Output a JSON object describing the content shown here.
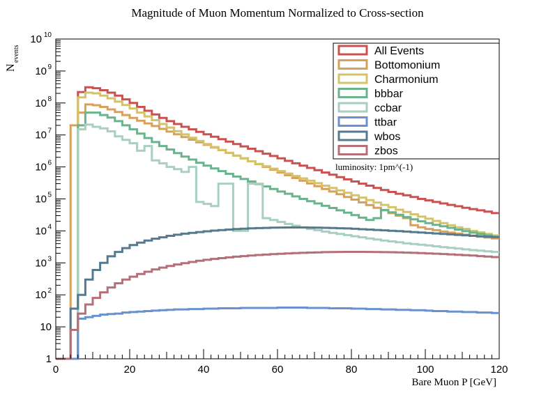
{
  "chart_data": {
    "type": "line",
    "style": "step-histogram",
    "title": "Magnitude of Muon Momentum Normalized to Cross-section",
    "xlabel": "Bare Muon P [GeV]",
    "ylabel_main": "N",
    "ylabel_sub": "events",
    "xlim": [
      0,
      120
    ],
    "ylim": [
      1,
      10000000000
    ],
    "yscale": "log",
    "bin_width": 2,
    "x_bin_starts": [
      0,
      2,
      4,
      6,
      8,
      10,
      12,
      14,
      16,
      18,
      20,
      22,
      24,
      26,
      28,
      30,
      32,
      34,
      36,
      38,
      40,
      42,
      44,
      46,
      48,
      50,
      52,
      54,
      56,
      58,
      60,
      62,
      64,
      66,
      68,
      70,
      72,
      74,
      76,
      78,
      80,
      82,
      84,
      86,
      88,
      90,
      92,
      94,
      96,
      98,
      100,
      102,
      104,
      106,
      108,
      110,
      112,
      114,
      116,
      118
    ],
    "x_ticks": [
      0,
      20,
      40,
      60,
      80,
      100,
      120
    ],
    "y_ticks": [
      {
        "value": 1,
        "label": "1",
        "sup": ""
      },
      {
        "value": 10,
        "label": "10",
        "sup": ""
      },
      {
        "value": 100,
        "label": "10",
        "sup": "2"
      },
      {
        "value": 1000,
        "label": "10",
        "sup": "3"
      },
      {
        "value": 10000,
        "label": "10",
        "sup": "4"
      },
      {
        "value": 100000,
        "label": "10",
        "sup": "5"
      },
      {
        "value": 1000000,
        "label": "10",
        "sup": "6"
      },
      {
        "value": 10000000,
        "label": "10",
        "sup": "7"
      },
      {
        "value": 100000000,
        "label": "10",
        "sup": "8"
      },
      {
        "value": 1000000000,
        "label": "10",
        "sup": "9"
      },
      {
        "value": 10000000000,
        "label": "10",
        "sup": "10"
      }
    ],
    "annotation": "luminosity: 1pm^(-1)",
    "legend_position": "top-right",
    "series": [
      {
        "name": "All Events",
        "color": "#c9514f",
        "values": [
          1,
          1,
          1,
          220000000.0,
          310000000.0,
          290000000.0,
          250000000.0,
          210000000.0,
          170000000.0,
          130000000.0,
          100000000.0,
          75000000.0,
          57000000.0,
          44000000.0,
          34000000.0,
          27000000.0,
          22000000.0,
          18000000.0,
          15000000.0,
          12500000.0,
          10500000.0,
          8800000.0,
          7400000.0,
          6200000.0,
          5200000.0,
          4400000.0,
          3700000.0,
          3100000.0,
          2600000.0,
          2200000.0,
          1850000.0,
          1550000.0,
          1300000.0,
          1100000.0,
          930000.0,
          790000.0,
          670000.0,
          570000.0,
          480000.0,
          410000.0,
          350000.0,
          300000.0,
          260000.0,
          220000.0,
          190000.0,
          165000.0,
          145000.0,
          130000.0,
          115000.0,
          100000.0,
          90000.0,
          80000.0,
          72000.0,
          65000.0,
          59000.0,
          53000.0,
          48000.0,
          44000.0,
          40000.0,
          36000.0
        ]
      },
      {
        "name": "Bottomonium",
        "color": "#d9a05b",
        "values": [
          1,
          1,
          20000000.0,
          50000000.0,
          90000000.0,
          85000000.0,
          75000000.0,
          63000000.0,
          52000000.0,
          42000000.0,
          34000000.0,
          28000000.0,
          23000000.0,
          19000000.0,
          15500000.0,
          12700000.0,
          10500000.0,
          8600000.0,
          7100000.0,
          5900000.0,
          4900000.0,
          4050000.0,
          3350000.0,
          2750000.0,
          2250000.0,
          1850000.0,
          1500000.0,
          1220000.0,
          1000000.0,
          820000.0,
          670000.0,
          550000.0,
          450000.0,
          370000.0,
          305000.0,
          250000.0,
          205000.0,
          170000.0,
          140000.0,
          115000.0,
          95000.0,
          78000.0,
          64000.0,
          53000.0,
          44000.0,
          36000.0,
          30000.0,
          25000.0,
          15000.0,
          13000.0,
          11500.0,
          10500.0,
          9500.0,
          8800.0,
          8200.0,
          7600.0,
          7100.0,
          6600.0,
          6200.0,
          5800.0
        ]
      },
      {
        "name": "Charmonium",
        "color": "#d4c36a",
        "values": [
          1,
          1,
          1,
          150000000.0,
          210000000.0,
          200000000.0,
          170000000.0,
          140000000.0,
          110000000.0,
          86000000.0,
          67000000.0,
          50000000.0,
          38000000.0,
          29000000.0,
          22000000.0,
          17000000.0,
          13200000.0,
          10400000.0,
          8200000.0,
          6500000.0,
          5200000.0,
          4200000.0,
          3400000.0,
          2750000.0,
          2250000.0,
          1850000.0,
          1500000.0,
          1250000.0,
          1050000.0,
          880000.0,
          740000.0,
          620000.0,
          520000.0,
          440000.0,
          370000.0,
          310000.0,
          260000.0,
          220000.0,
          185000.0,
          155000.0,
          130000.0,
          110000.0,
          92000.0,
          77000.0,
          65000.0,
          55000.0,
          46000.0,
          39000.0,
          33000.0,
          28000.0,
          24000.0,
          20500.0,
          17500.0,
          15000.0,
          13000.0,
          11500.0,
          10000.0,
          9000.0,
          8000.0,
          7200.0
        ]
      },
      {
        "name": "bbbar",
        "color": "#6bb38c",
        "values": [
          1,
          1,
          1,
          20000000.0,
          50000000.0,
          50000000.0,
          42000000.0,
          35000000.0,
          27000000.0,
          20000000.0,
          15000000.0,
          11000000.0,
          8000000.0,
          6000000.0,
          4500000.0,
          3500000.0,
          2700000.0,
          2100000.0,
          1700000.0,
          1350000.0,
          1100000.0,
          900000.0,
          740000.0,
          610000.0,
          500000.0,
          420000.0,
          350000.0,
          290000.0,
          245000.0,
          205000.0,
          170000.0,
          145000.0,
          120000.0,
          100000.0,
          85000.0,
          72000.0,
          61000.0,
          52000.0,
          44000.0,
          37000.0,
          31000.0,
          26000.0,
          22000.0,
          25000.0,
          45000.0,
          38000.0,
          32000.0,
          27000.0,
          23000.0,
          20000.0,
          17500.0,
          15500.0,
          14000.0,
          12500.0,
          11000.0,
          9800.0,
          8800.0,
          8000.0,
          7200.0,
          6600.0
        ]
      },
      {
        "name": "ccbar",
        "color": "#a8cfbf",
        "values": [
          1,
          1,
          1,
          15000000.0,
          21000000.0,
          18000000.0,
          16000000.0,
          13000000.0,
          9000000.0,
          7000000.0,
          5500000.0,
          3200000.0,
          4500000.0,
          1600000.0,
          1300000.0,
          1000000.0,
          850000.0,
          700000.0,
          1000000.0,
          80000.0,
          70000.0,
          60000.0,
          300000.0,
          300000.0,
          10000.0,
          10000.0,
          300000.0,
          300000.0,
          25000.0,
          22000.0,
          19000.0,
          16500.0,
          14500.0,
          13000.0,
          11500.0,
          10500.0,
          9500.0,
          8700.0,
          8000.0,
          7400.0,
          6800.0,
          6300.0,
          5800.0,
          5400.0,
          5000.0,
          4700.0,
          4400.0,
          4100.0,
          3900.0,
          3700.0,
          3500.0,
          3300.0,
          3100.0,
          2950.0,
          2800.0,
          2650.0,
          2500.0,
          2400.0,
          2300.0,
          2200.0
        ]
      },
      {
        "name": "ttbar",
        "color": "#6a91cf",
        "values": [
          1,
          1,
          1,
          18.0,
          20.0,
          22.0,
          24.0,
          25.0,
          26.0,
          28.0,
          29.0,
          30.0,
          31.0,
          32.0,
          33.0,
          34.0,
          35.0,
          35.0,
          36.0,
          36.0,
          37.0,
          37.0,
          38.0,
          38.0,
          38.0,
          39.0,
          39.0,
          39.0,
          39.0,
          39.0,
          40.0,
          40.0,
          40.0,
          40.0,
          39.0,
          39.0,
          39.0,
          38.0,
          38.0,
          38.0,
          37.0,
          37.0,
          36.0,
          36.0,
          35.0,
          35.0,
          34.0,
          34.0,
          33.0,
          33.0,
          32.0,
          31.0,
          31.0,
          30.0,
          30.0,
          29.0,
          29.0,
          28.0,
          28.0,
          27.0
        ]
      },
      {
        "name": "wbos",
        "color": "#55798f",
        "values": [
          1,
          1,
          37.0,
          100.0,
          300.0,
          600.0,
          1000.0,
          1600.0,
          2200.0,
          2900.0,
          3600.0,
          4300.0,
          5000.0,
          5700.0,
          6300.0,
          7000.0,
          7600.0,
          8200.0,
          8700.0,
          9200.0,
          9700.0,
          10200.0,
          10600.0,
          11000.0,
          11400.0,
          11700.0,
          12000.0,
          12200.0,
          12400.0,
          12600.0,
          12700.0,
          12800.0,
          12800.0,
          12800.0,
          12700.0,
          12600.0,
          12500.0,
          12300.0,
          12100.0,
          11900.0,
          11600.0,
          11300.0,
          11000.0,
          10700.0,
          10400.0,
          10100.0,
          9800.0,
          9500.0,
          9200.0,
          8900.0,
          8600.0,
          8300.0,
          8000.0,
          7800.0,
          7500.0,
          7300.0,
          7000.0,
          6800.0,
          6600.0,
          6400.0
        ]
      },
      {
        "name": "zbos",
        "color": "#b46f78",
        "values": [
          1,
          1,
          8.0,
          26.0,
          50.0,
          80.0,
          120.0,
          170.0,
          230.0,
          300.0,
          370.0,
          450.0,
          530.0,
          620.0,
          710.0,
          800.0,
          890.0,
          980.0,
          1070.0,
          1160.0,
          1250.0,
          1330.0,
          1410.0,
          1490.0,
          1560.0,
          1630.0,
          1700.0,
          1760.0,
          1820.0,
          1880.0,
          1930.0,
          1980.0,
          2020.0,
          2060.0,
          2100.0,
          2130.0,
          2160.0,
          2180.0,
          2200.0,
          2210.0,
          2210.0,
          2210.0,
          2200.0,
          2190.0,
          2170.0,
          2150.0,
          2120.0,
          2090.0,
          2060.0,
          2020.0,
          1980.0,
          1940.0,
          1890.0,
          1840.0,
          1790.0,
          1740.0,
          1690.0,
          1630.0,
          1580.0,
          1520.0
        ]
      }
    ]
  }
}
